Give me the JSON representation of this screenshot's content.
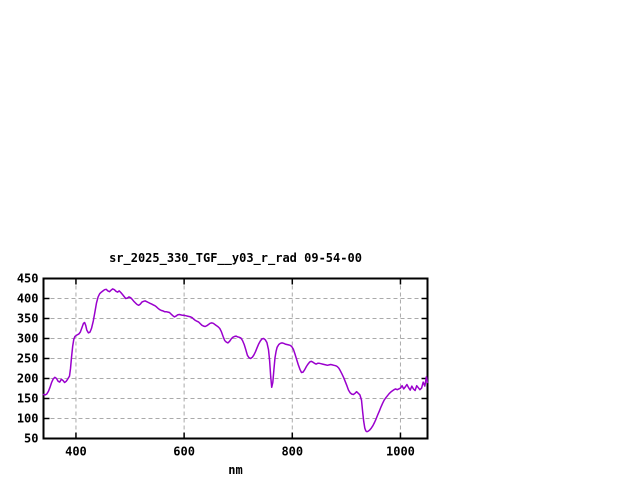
{
  "window": {
    "background": "#ffffff"
  },
  "chart_data": {
    "type": "line",
    "title": "sr_2025_330_TGF__y03_r_rad 09-54-00",
    "xlabel": "nm",
    "ylabel": "",
    "xlim": [
      340,
      1050
    ],
    "ylim": [
      50,
      450
    ],
    "x_ticks": [
      400,
      600,
      800,
      1000
    ],
    "y_ticks": [
      50,
      100,
      150,
      200,
      250,
      300,
      350,
      400,
      450
    ],
    "grid": true,
    "legend_position": "none",
    "colors": {
      "line": "#9a00cd",
      "grid": "#aaaaaa",
      "axis": "#000000",
      "text": "#000000",
      "background": "#ffffff"
    },
    "series": [
      {
        "name": "sr_2025_330_TGF__y03_r_rad",
        "points": [
          [
            340,
            160
          ],
          [
            343,
            159
          ],
          [
            346,
            161
          ],
          [
            349,
            168
          ],
          [
            352,
            178
          ],
          [
            355,
            190
          ],
          [
            358,
            199
          ],
          [
            361,
            203
          ],
          [
            364,
            200
          ],
          [
            367,
            193
          ],
          [
            370,
            191
          ],
          [
            373,
            198
          ],
          [
            376,
            195
          ],
          [
            379,
            190
          ],
          [
            382,
            193
          ],
          [
            385,
            199
          ],
          [
            388,
            206
          ],
          [
            390,
            225
          ],
          [
            392,
            255
          ],
          [
            394,
            281
          ],
          [
            396,
            298
          ],
          [
            398,
            305
          ],
          [
            400,
            307
          ],
          [
            402,
            309
          ],
          [
            405,
            311
          ],
          [
            408,
            316
          ],
          [
            411,
            327
          ],
          [
            414,
            338
          ],
          [
            416,
            340
          ],
          [
            418,
            333
          ],
          [
            420,
            321
          ],
          [
            423,
            314
          ],
          [
            426,
            316
          ],
          [
            429,
            326
          ],
          [
            432,
            344
          ],
          [
            435,
            366
          ],
          [
            438,
            389
          ],
          [
            441,
            404
          ],
          [
            444,
            412
          ],
          [
            447,
            416
          ],
          [
            450,
            419
          ],
          [
            453,
            422
          ],
          [
            456,
            423
          ],
          [
            459,
            419
          ],
          [
            462,
            417
          ],
          [
            465,
            421
          ],
          [
            468,
            424
          ],
          [
            471,
            422
          ],
          [
            474,
            418
          ],
          [
            477,
            416
          ],
          [
            480,
            419
          ],
          [
            483,
            415
          ],
          [
            486,
            410
          ],
          [
            489,
            405
          ],
          [
            492,
            400
          ],
          [
            495,
            401
          ],
          [
            498,
            404
          ],
          [
            501,
            402
          ],
          [
            504,
            398
          ],
          [
            507,
            393
          ],
          [
            510,
            389
          ],
          [
            513,
            385
          ],
          [
            516,
            383
          ],
          [
            519,
            386
          ],
          [
            522,
            391
          ],
          [
            525,
            393
          ],
          [
            528,
            394
          ],
          [
            531,
            392
          ],
          [
            534,
            390
          ],
          [
            537,
            388
          ],
          [
            540,
            386
          ],
          [
            543,
            384
          ],
          [
            546,
            382
          ],
          [
            549,
            379
          ],
          [
            552,
            375
          ],
          [
            555,
            372
          ],
          [
            558,
            370
          ],
          [
            561,
            369
          ],
          [
            564,
            367
          ],
          [
            567,
            367
          ],
          [
            570,
            366
          ],
          [
            573,
            365
          ],
          [
            576,
            361
          ],
          [
            579,
            357
          ],
          [
            582,
            354
          ],
          [
            585,
            356
          ],
          [
            588,
            359
          ],
          [
            591,
            360
          ],
          [
            594,
            359
          ],
          [
            597,
            358
          ],
          [
            600,
            358
          ],
          [
            603,
            357
          ],
          [
            606,
            356
          ],
          [
            609,
            355
          ],
          [
            612,
            354
          ],
          [
            615,
            352
          ],
          [
            618,
            348
          ],
          [
            621,
            345
          ],
          [
            624,
            343
          ],
          [
            627,
            341
          ],
          [
            630,
            337
          ],
          [
            633,
            333
          ],
          [
            636,
            331
          ],
          [
            639,
            330
          ],
          [
            642,
            332
          ],
          [
            645,
            335
          ],
          [
            648,
            338
          ],
          [
            651,
            339
          ],
          [
            654,
            338
          ],
          [
            657,
            335
          ],
          [
            660,
            332
          ],
          [
            663,
            329
          ],
          [
            666,
            325
          ],
          [
            669,
            317
          ],
          [
            672,
            305
          ],
          [
            675,
            295
          ],
          [
            678,
            291
          ],
          [
            681,
            289
          ],
          [
            684,
            293
          ],
          [
            687,
            299
          ],
          [
            690,
            303
          ],
          [
            693,
            305
          ],
          [
            696,
            306
          ],
          [
            699,
            304
          ],
          [
            702,
            303
          ],
          [
            705,
            301
          ],
          [
            708,
            295
          ],
          [
            711,
            285
          ],
          [
            714,
            272
          ],
          [
            717,
            258
          ],
          [
            720,
            252
          ],
          [
            723,
            250
          ],
          [
            726,
            253
          ],
          [
            729,
            259
          ],
          [
            732,
            267
          ],
          [
            735,
            277
          ],
          [
            738,
            287
          ],
          [
            741,
            294
          ],
          [
            744,
            299
          ],
          [
            747,
            300
          ],
          [
            750,
            297
          ],
          [
            753,
            290
          ],
          [
            756,
            272
          ],
          [
            758,
            245
          ],
          [
            760,
            205
          ],
          [
            762,
            178
          ],
          [
            764,
            190
          ],
          [
            766,
            222
          ],
          [
            768,
            252
          ],
          [
            770,
            268
          ],
          [
            772,
            278
          ],
          [
            775,
            285
          ],
          [
            778,
            288
          ],
          [
            781,
            289
          ],
          [
            784,
            288
          ],
          [
            787,
            286
          ],
          [
            790,
            285
          ],
          [
            793,
            284
          ],
          [
            796,
            283
          ],
          [
            799,
            280
          ],
          [
            802,
            273
          ],
          [
            805,
            261
          ],
          [
            808,
            248
          ],
          [
            811,
            235
          ],
          [
            814,
            223
          ],
          [
            817,
            215
          ],
          [
            820,
            216
          ],
          [
            823,
            222
          ],
          [
            826,
            230
          ],
          [
            829,
            236
          ],
          [
            832,
            241
          ],
          [
            835,
            243
          ],
          [
            838,
            241
          ],
          [
            841,
            238
          ],
          [
            844,
            236
          ],
          [
            847,
            238
          ],
          [
            850,
            238
          ],
          [
            853,
            237
          ],
          [
            856,
            236
          ],
          [
            859,
            235
          ],
          [
            862,
            234
          ],
          [
            865,
            233
          ],
          [
            868,
            234
          ],
          [
            871,
            235
          ],
          [
            874,
            234
          ],
          [
            877,
            233
          ],
          [
            880,
            232
          ],
          [
            883,
            230
          ],
          [
            886,
            226
          ],
          [
            889,
            219
          ],
          [
            892,
            211
          ],
          [
            895,
            202
          ],
          [
            898,
            192
          ],
          [
            901,
            182
          ],
          [
            904,
            171
          ],
          [
            907,
            164
          ],
          [
            910,
            161
          ],
          [
            913,
            160
          ],
          [
            916,
            163
          ],
          [
            919,
            167
          ],
          [
            922,
            163
          ],
          [
            925,
            159
          ],
          [
            928,
            146
          ],
          [
            930,
            118
          ],
          [
            932,
            93
          ],
          [
            934,
            76
          ],
          [
            936,
            69
          ],
          [
            938,
            67
          ],
          [
            940,
            68
          ],
          [
            943,
            71
          ],
          [
            946,
            76
          ],
          [
            949,
            82
          ],
          [
            952,
            90
          ],
          [
            955,
            99
          ],
          [
            958,
            109
          ],
          [
            961,
            119
          ],
          [
            964,
            129
          ],
          [
            967,
            138
          ],
          [
            970,
            146
          ],
          [
            973,
            152
          ],
          [
            976,
            157
          ],
          [
            979,
            162
          ],
          [
            982,
            166
          ],
          [
            985,
            169
          ],
          [
            988,
            172
          ],
          [
            991,
            174
          ],
          [
            994,
            172
          ],
          [
            997,
            174
          ],
          [
            1000,
            176
          ],
          [
            1003,
            182
          ],
          [
            1006,
            174
          ],
          [
            1009,
            179
          ],
          [
            1012,
            185
          ],
          [
            1015,
            177
          ],
          [
            1018,
            171
          ],
          [
            1021,
            181
          ],
          [
            1024,
            174
          ],
          [
            1027,
            170
          ],
          [
            1030,
            182
          ],
          [
            1033,
            177
          ],
          [
            1036,
            172
          ],
          [
            1039,
            176
          ],
          [
            1042,
            191
          ],
          [
            1045,
            181
          ],
          [
            1048,
            204
          ],
          [
            1050,
            190
          ]
        ]
      }
    ]
  }
}
